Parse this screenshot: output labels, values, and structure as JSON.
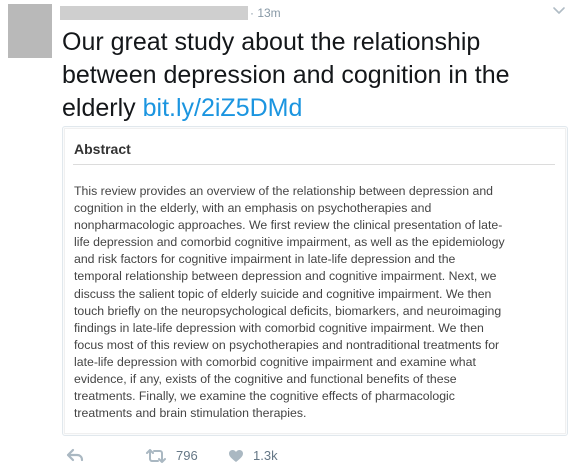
{
  "tweet": {
    "timestamp": "· 13m",
    "text": "Our great study about the relationship between depression and cognition in the elderly",
    "link": "bit.ly/2iZ5DMd"
  },
  "card": {
    "title": "Abstract",
    "lines": [
      "This review provides an overview of the relationship between depression and",
      "cognition in the elderly, with an emphasis on psychotherapies and",
      "nonpharmacologic approaches. We first review the clinical presentation of late-",
      "life depression and comorbid cognitive impairment, as well as the epidemiology",
      "and risk factors for cognitive impairment in late-life depression and the",
      "temporal relationship between depression and cognitive impairment. Next, we",
      "discuss the salient topic of elderly suicide and cognitive impairment. We then",
      "touch briefly on the neuropsychological deficits, biomarkers, and neuroimaging",
      "findings in late-life depression with comorbid cognitive impairment. We then",
      "focus most of this review on psychotherapies and nontraditional treatments for",
      "late-life depression with comorbid cognitive impairment and examine what",
      "evidence, if any, exists of the cognitive and functional benefits of these",
      "treatments. Finally, we examine the cognitive effects of pharmacologic",
      "treatments and brain stimulation therapies."
    ]
  },
  "actions": {
    "reply_icon": "reply-icon",
    "retweet_icon": "retweet-icon",
    "retweet_count": "796",
    "like_icon": "heart-icon",
    "like_count": "1.3k"
  },
  "colors": {
    "link": "#1b95e0",
    "muted": "#8899a6",
    "text": "#14171a"
  }
}
